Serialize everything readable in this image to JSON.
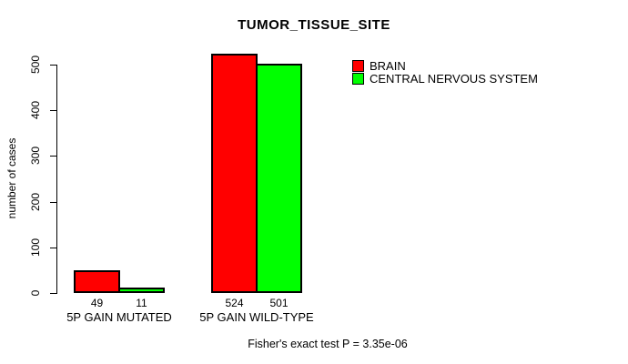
{
  "chart_data": {
    "type": "bar",
    "title": "TUMOR_TISSUE_SITE",
    "ylabel": "number of cases",
    "xlabel": "",
    "categories": [
      "5P GAIN MUTATED",
      "5P GAIN WILD-TYPE"
    ],
    "series": [
      {
        "name": "BRAIN",
        "color": "#ff0000",
        "values": [
          49,
          524
        ]
      },
      {
        "name": "CENTRAL NERVOUS SYSTEM",
        "color": "#00ff00",
        "values": [
          11,
          501
        ]
      }
    ],
    "yticks": [
      0,
      100,
      200,
      300,
      400,
      500
    ],
    "ylim": [
      0,
      545
    ],
    "grid": false,
    "legend_position": "right",
    "bar_border_color": "#000000",
    "annotation": "Fisher's exact test P = 3.35e-06"
  }
}
